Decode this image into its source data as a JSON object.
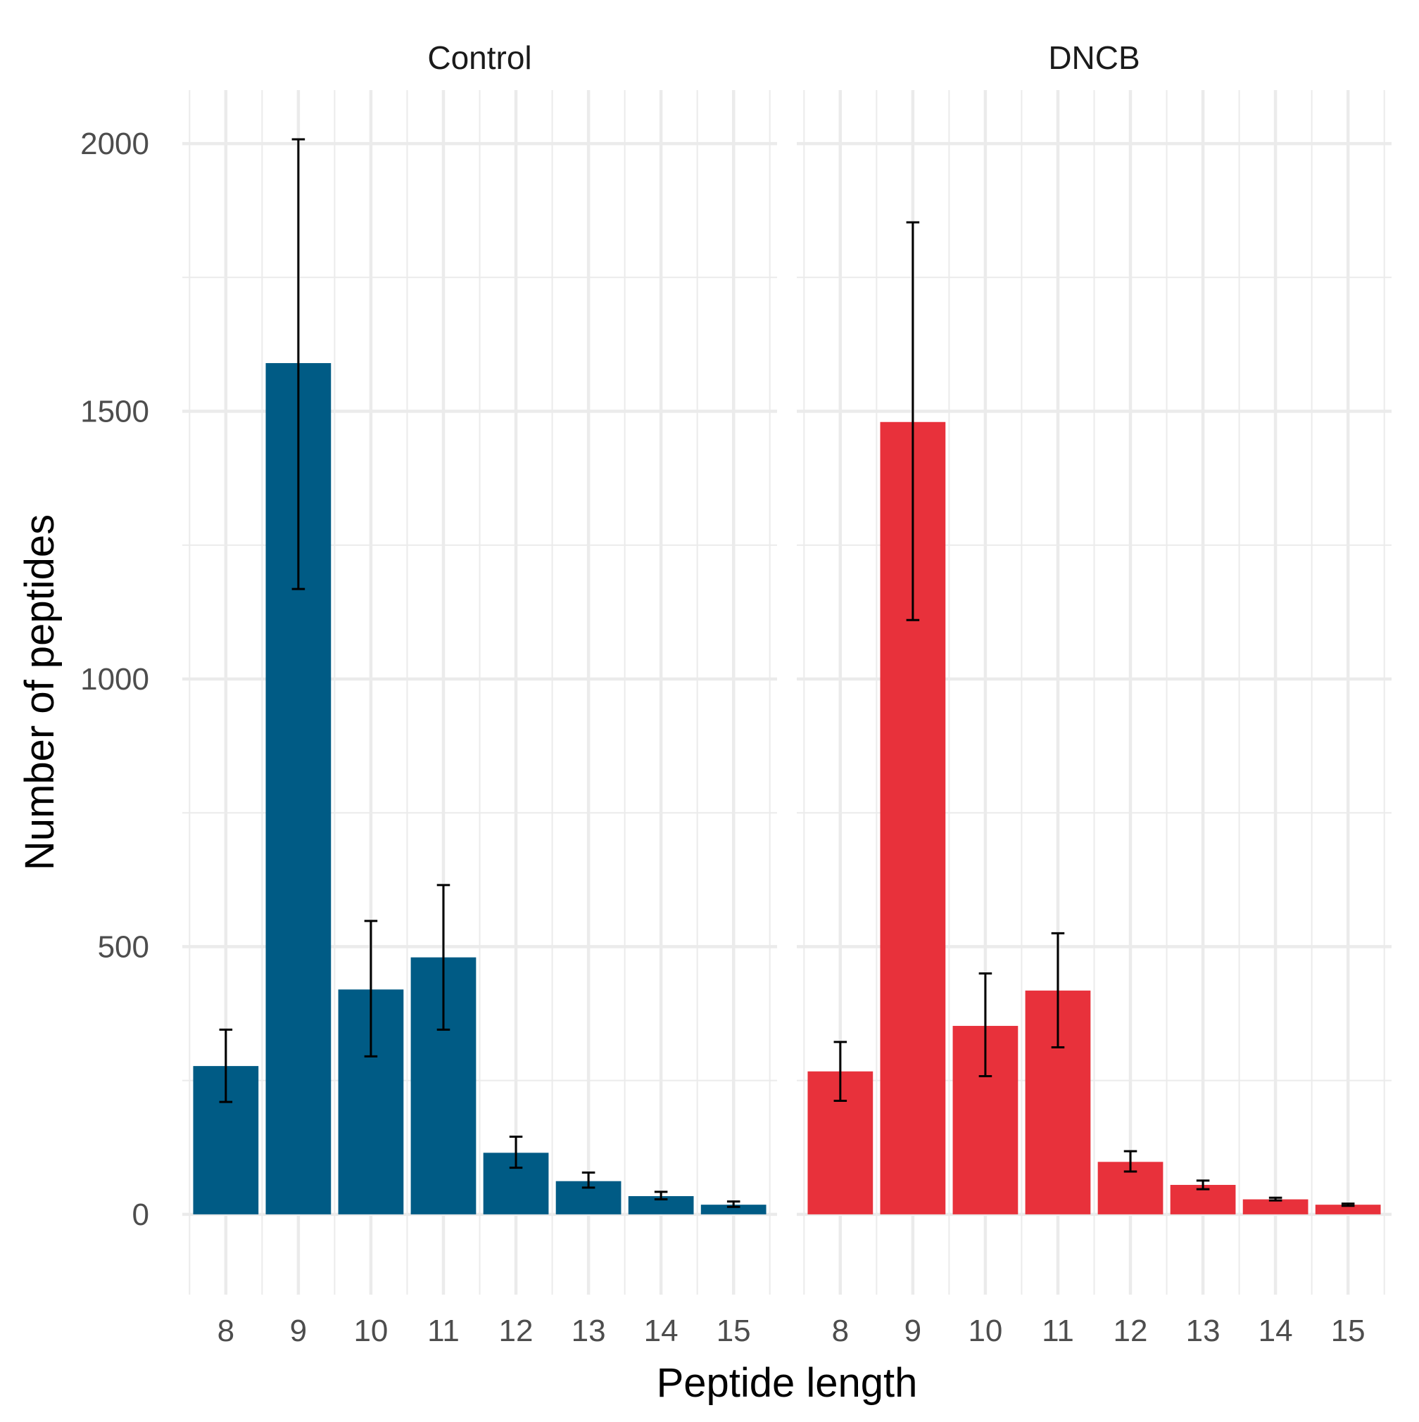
{
  "chart_data": {
    "type": "bar",
    "xlabel": "Peptide length",
    "ylabel": "Number of peptides",
    "ylim": [
      -150,
      2100
    ],
    "yticks": [
      0,
      500,
      1000,
      1500,
      2000
    ],
    "y_tick_labels": [
      "0",
      "500",
      "1000",
      "1500",
      "2000"
    ],
    "categories": [
      "8",
      "9",
      "10",
      "11",
      "12",
      "13",
      "14",
      "15"
    ],
    "grid": true,
    "legend": "none",
    "panels": [
      {
        "name": "Control",
        "color": "#005b85",
        "values": [
          277,
          1590,
          420,
          480,
          115,
          62,
          34,
          18
        ],
        "error_low": [
          210,
          1168,
          295,
          345,
          87,
          50,
          28,
          14
        ],
        "error_high": [
          345,
          2008,
          548,
          615,
          145,
          78,
          42,
          24
        ]
      },
      {
        "name": "DNCB",
        "color": "#e8313b",
        "values": [
          267,
          1480,
          352,
          418,
          98,
          55,
          28,
          18
        ],
        "error_low": [
          212,
          1110,
          258,
          312,
          80,
          47,
          26,
          16
        ],
        "error_high": [
          322,
          1853,
          450,
          525,
          118,
          63,
          31,
          20
        ]
      }
    ]
  }
}
